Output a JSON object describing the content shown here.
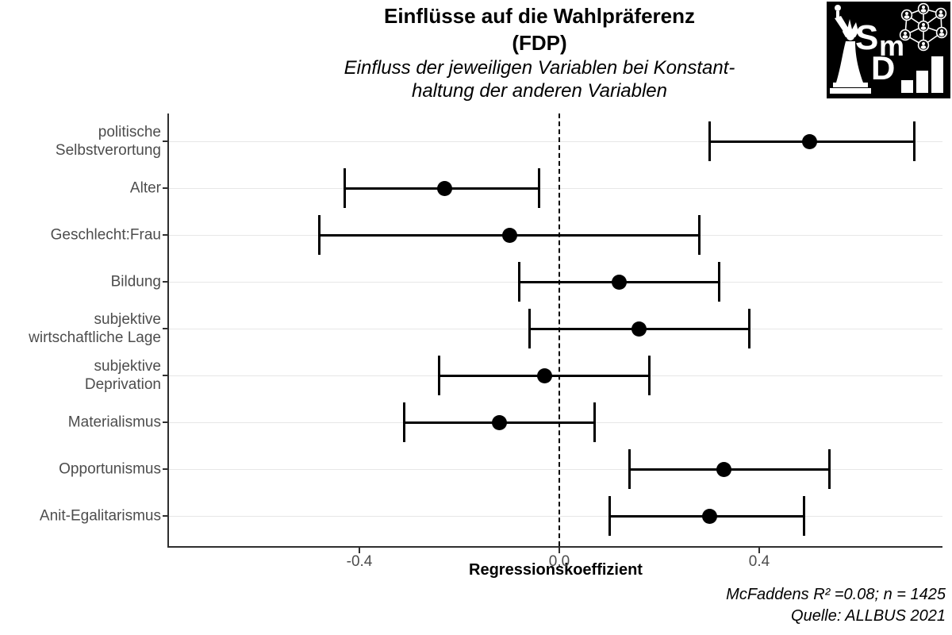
{
  "header": {
    "title_line1": "Einflüsse auf die Wahlpräferenz",
    "title_line2": "(FDP)",
    "subtitle_line1": "Einfluss der jeweiligen Variablen bei Konstant-",
    "subtitle_line2": "haltung der anderen Variablen"
  },
  "logo": {
    "letters": [
      "S",
      "m",
      "D"
    ],
    "elements": [
      "statue-of-liberty-icon",
      "network-graph-icon",
      "bar-chart-icon"
    ],
    "background": "#000000",
    "foreground": "#ffffff"
  },
  "chart_data": {
    "type": "scatter",
    "subtype": "coefficient-dot-whisker",
    "orientation": "horizontal",
    "title": "Einflüsse auf die Wahlpräferenz (FDP)",
    "subtitle": "Einfluss der jeweiligen Variablen bei Konstanthaltung der anderen Variablen",
    "xlabel": "Regressionskoeffizient",
    "ylabel": "",
    "xlim": [
      -0.78,
      0.77
    ],
    "x_ticks": [
      -0.4,
      0.0,
      0.4
    ],
    "x_tick_labels": [
      "-0.4",
      "0.0",
      "0.4"
    ],
    "zero_line": 0.0,
    "grid": "horizontal-major-only",
    "legend": "none",
    "categories": [
      [
        "politische",
        "Selbstverortung"
      ],
      [
        "Alter"
      ],
      [
        "Geschlecht:Frau"
      ],
      [
        "Bildung"
      ],
      [
        "subjektive",
        "wirtschaftliche Lage"
      ],
      [
        "subjektive",
        "Deprivation"
      ],
      [
        "Materialismus"
      ],
      [
        "Opportunismus"
      ],
      [
        "Anit-Egalitarismus"
      ]
    ],
    "series": [
      {
        "name": "Regressionskoeffizient mit Konfidenzintervall",
        "points": [
          {
            "label": "politische Selbstverortung",
            "estimate": 0.5,
            "ci_low": 0.3,
            "ci_high": 0.71
          },
          {
            "label": "Alter",
            "estimate": -0.23,
            "ci_low": -0.43,
            "ci_high": -0.04
          },
          {
            "label": "Geschlecht:Frau",
            "estimate": -0.1,
            "ci_low": -0.48,
            "ci_high": 0.28
          },
          {
            "label": "Bildung",
            "estimate": 0.12,
            "ci_low": -0.08,
            "ci_high": 0.32
          },
          {
            "label": "subjektive wirtschaftliche Lage",
            "estimate": 0.16,
            "ci_low": -0.06,
            "ci_high": 0.38
          },
          {
            "label": "subjektive Deprivation",
            "estimate": -0.03,
            "ci_low": -0.24,
            "ci_high": 0.18
          },
          {
            "label": "Materialismus",
            "estimate": -0.12,
            "ci_low": -0.31,
            "ci_high": 0.07
          },
          {
            "label": "Opportunismus",
            "estimate": 0.33,
            "ci_low": 0.14,
            "ci_high": 0.54
          },
          {
            "label": "Anit-Egalitarismus",
            "estimate": 0.3,
            "ci_low": 0.1,
            "ci_high": 0.49
          }
        ]
      }
    ],
    "colors": {
      "point": "#000000",
      "ci": "#000000",
      "zero_line": "#000000",
      "grid": "#e7e7e7",
      "axis": "#2f2f2f",
      "axis_text": "#4d4d4d"
    }
  },
  "footer": {
    "caption_line1": "McFaddens R² =0.08; n = 1425",
    "caption_line2": "Quelle: ALLBUS 2021"
  }
}
